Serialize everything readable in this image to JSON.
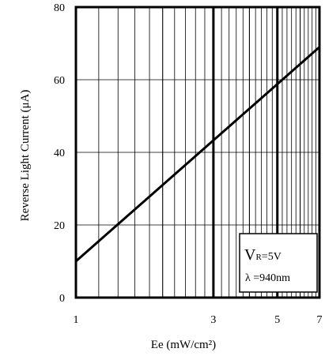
{
  "chart_data": {
    "type": "line",
    "title": "",
    "xlabel": "Ee (mW/cm²)",
    "ylabel": "Reverse Light Current (μA)",
    "xscale": "log",
    "xlim": [
      1,
      7
    ],
    "ylim": [
      0,
      80
    ],
    "grid": true,
    "x_ticks": [
      "1",
      "3",
      "5",
      "7"
    ],
    "y_ticks": [
      "0",
      "20",
      "40",
      "60",
      "80"
    ],
    "series": [
      {
        "x": [
          1,
          7
        ],
        "y": [
          10,
          69
        ]
      }
    ],
    "annotation": {
      "v_main": "V",
      "v_sub": "R",
      "v_rest": "=5V",
      "wavelength": "λ =940nm"
    }
  }
}
